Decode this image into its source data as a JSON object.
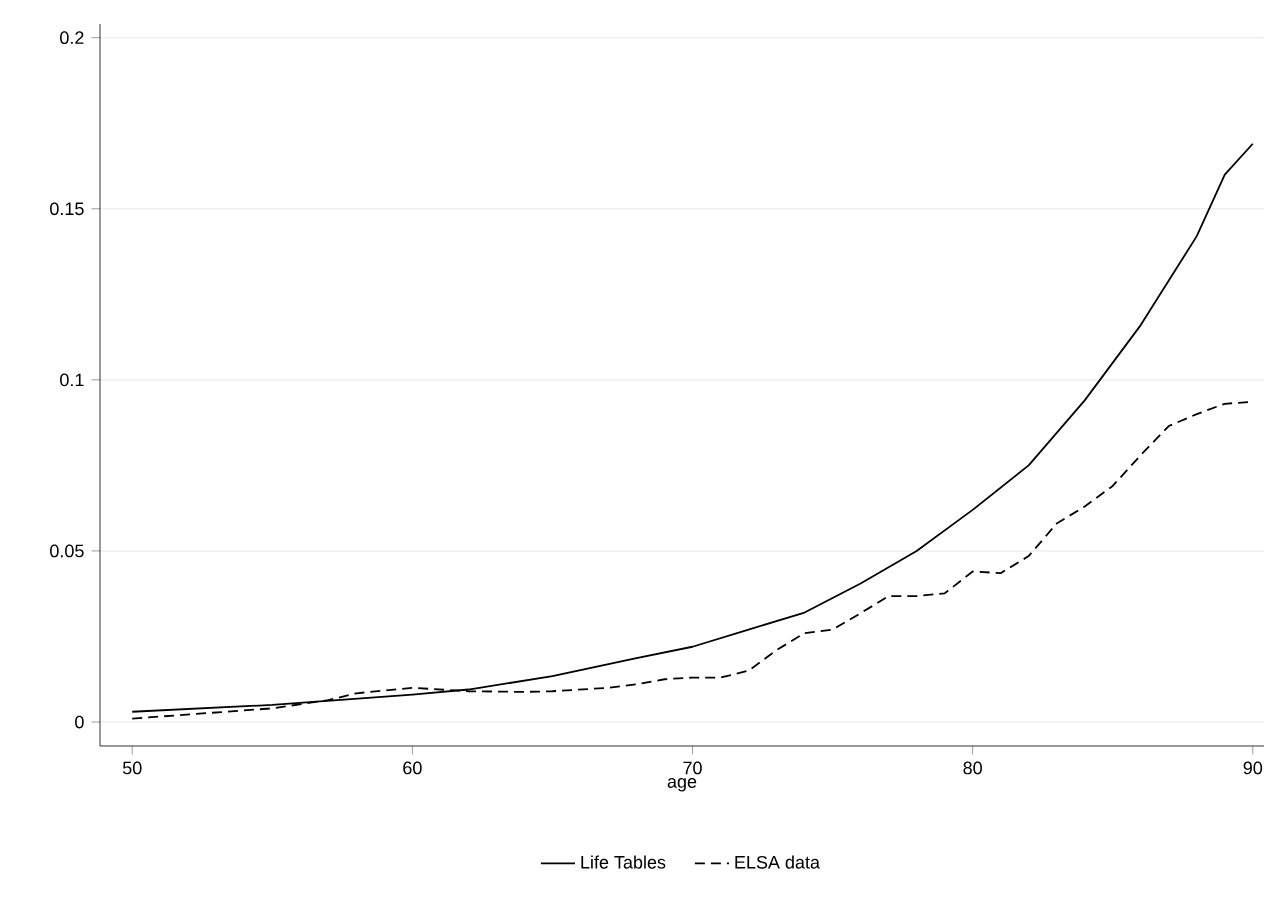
{
  "chart_data": {
    "type": "line",
    "xlabel": "age",
    "grid": "y",
    "legend": "bottom",
    "marker": "none",
    "xlim": [
      48.85,
      90.4
    ],
    "ylim": [
      -0.007,
      0.204
    ],
    "xticks": [
      50,
      60,
      70,
      80,
      90
    ],
    "yticks": [
      0,
      0.05,
      0.1,
      0.15,
      0.2
    ],
    "series": [
      {
        "name": "Life Tables",
        "color": "#000000",
        "line_style": "solid",
        "x": [
          50,
          55,
          60,
          62,
          65,
          68,
          70,
          72,
          74,
          76,
          78,
          80,
          82,
          84,
          86,
          88,
          89,
          90
        ],
        "values": [
          0.003,
          0.005,
          0.008,
          0.0095,
          0.0134,
          0.0187,
          0.022,
          0.027,
          0.032,
          0.0405,
          0.05,
          0.062,
          0.075,
          0.094,
          0.116,
          0.142,
          0.16,
          0.169
        ]
      },
      {
        "name": "ELSA data",
        "color": "#000000",
        "line_style": "dashed",
        "x": [
          50,
          55,
          57,
          58,
          60,
          62,
          64,
          65,
          67,
          68,
          69,
          70,
          71,
          72,
          73,
          74,
          75,
          76,
          77,
          78,
          79,
          80,
          81,
          82,
          83,
          84,
          85,
          86,
          87,
          88,
          89,
          90
        ],
        "values": [
          0.001,
          0.004,
          0.0064,
          0.0084,
          0.01,
          0.009,
          0.0088,
          0.009,
          0.01,
          0.011,
          0.0125,
          0.013,
          0.013,
          0.015,
          0.021,
          0.026,
          0.027,
          0.0318,
          0.0368,
          0.0368,
          0.0376,
          0.044,
          0.0435,
          0.0485,
          0.058,
          0.063,
          0.069,
          0.078,
          0.0865,
          0.09,
          0.093,
          0.0936
        ]
      }
    ]
  }
}
